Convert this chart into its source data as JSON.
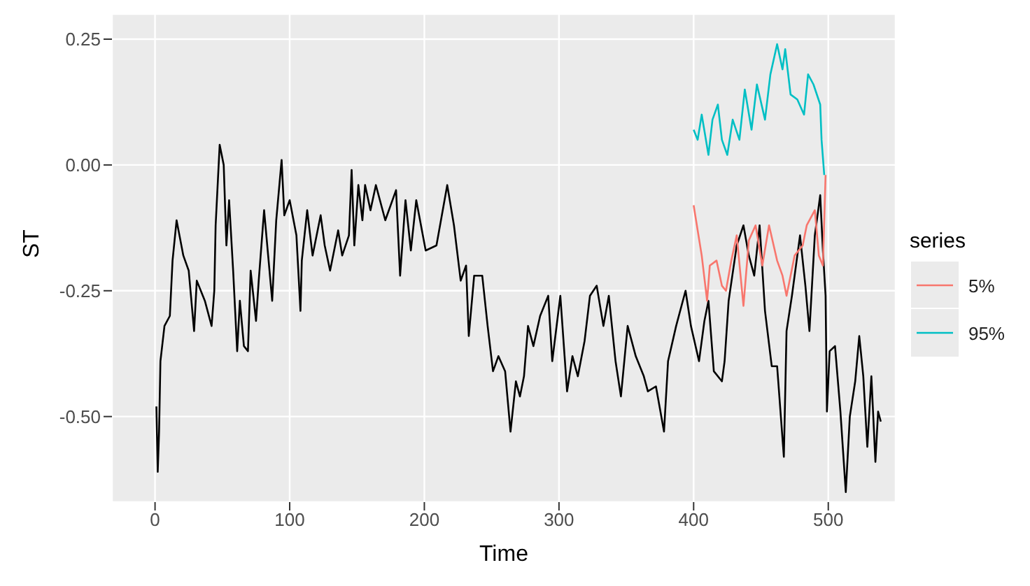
{
  "chart_data": {
    "type": "line",
    "xlabel": "Time",
    "ylabel": "ST",
    "legend_title": "series",
    "legend": "right",
    "grid": true,
    "xlim": [
      -32,
      550
    ],
    "xticks": [
      0,
      100,
      200,
      300,
      400,
      500
    ],
    "ylim": [
      -0.67,
      0.3
    ],
    "yticks": [
      0.25,
      {
        "value": 0,
        "label": "0.00"
      },
      -0.25,
      {
        "value": -0.5,
        "label": "-0.50"
      }
    ],
    "series": [
      {
        "color": "#000000",
        "x": [
          1,
          2,
          3,
          4,
          7,
          11,
          13,
          16,
          21,
          25,
          29,
          31,
          37,
          42,
          44,
          45,
          48,
          51,
          53,
          55,
          58,
          61,
          63,
          66,
          69,
          71,
          75,
          77,
          81,
          84,
          87,
          90,
          94,
          96,
          100,
          105,
          108,
          109,
          113,
          117,
          123,
          126,
          130,
          136,
          139,
          144,
          146,
          148,
          151,
          154,
          156,
          160,
          164,
          171,
          179,
          182,
          186,
          190,
          194,
          201,
          209,
          217,
          222,
          227,
          231,
          233,
          237,
          243,
          247,
          251,
          255,
          260,
          264,
          268,
          271,
          274,
          277,
          281,
          286,
          292,
          295,
          301,
          306,
          310,
          314,
          319,
          323,
          328,
          333,
          337,
          342,
          346,
          351,
          357,
          363,
          366,
          372,
          378,
          381,
          387,
          394,
          398,
          404,
          408,
          411,
          415,
          421,
          423,
          426,
          432,
          437,
          441,
          445,
          449,
          453,
          458,
          462,
          467,
          469,
          473,
          479,
          483,
          486,
          490,
          494,
          496,
          498,
          499,
          501,
          505,
          509,
          513,
          516,
          520,
          523,
          526,
          529,
          532,
          535,
          537,
          539
        ],
        "values": [
          -0.48,
          -0.61,
          -0.53,
          -0.39,
          -0.32,
          -0.3,
          -0.19,
          -0.11,
          -0.18,
          -0.21,
          -0.33,
          -0.23,
          -0.27,
          -0.32,
          -0.25,
          -0.12,
          0.04,
          0.0,
          -0.16,
          -0.07,
          -0.21,
          -0.37,
          -0.27,
          -0.36,
          -0.37,
          -0.21,
          -0.31,
          -0.23,
          -0.09,
          -0.18,
          -0.27,
          -0.11,
          0.01,
          -0.1,
          -0.07,
          -0.14,
          -0.29,
          -0.19,
          -0.09,
          -0.18,
          -0.1,
          -0.16,
          -0.21,
          -0.13,
          -0.18,
          -0.14,
          -0.01,
          -0.16,
          -0.04,
          -0.11,
          -0.04,
          -0.09,
          -0.04,
          -0.11,
          -0.05,
          -0.22,
          -0.07,
          -0.17,
          -0.07,
          -0.17,
          -0.16,
          -0.04,
          -0.12,
          -0.23,
          -0.2,
          -0.34,
          -0.22,
          -0.22,
          -0.32,
          -0.41,
          -0.38,
          -0.41,
          -0.53,
          -0.43,
          -0.46,
          -0.42,
          -0.32,
          -0.36,
          -0.3,
          -0.26,
          -0.39,
          -0.26,
          -0.45,
          -0.38,
          -0.42,
          -0.35,
          -0.26,
          -0.24,
          -0.32,
          -0.26,
          -0.39,
          -0.46,
          -0.32,
          -0.38,
          -0.42,
          -0.45,
          -0.44,
          -0.53,
          -0.39,
          -0.32,
          -0.25,
          -0.32,
          -0.39,
          -0.31,
          -0.27,
          -0.41,
          -0.43,
          -0.39,
          -0.27,
          -0.16,
          -0.12,
          -0.18,
          -0.22,
          -0.12,
          -0.29,
          -0.4,
          -0.4,
          -0.58,
          -0.33,
          -0.26,
          -0.14,
          -0.24,
          -0.33,
          -0.14,
          -0.06,
          -0.17,
          -0.26,
          -0.49,
          -0.37,
          -0.36,
          -0.49,
          -0.65,
          -0.5,
          -0.43,
          -0.34,
          -0.42,
          -0.56,
          -0.42,
          -0.59,
          -0.49,
          -0.51
        ]
      },
      {
        "name": "5%",
        "color": "#f8766d",
        "x": [
          400,
          403,
          406,
          410,
          412,
          417,
          421,
          424,
          428,
          432,
          437,
          441,
          446,
          451,
          456,
          462,
          466,
          469,
          475,
          481,
          484,
          490,
          493,
          496,
          498
        ],
        "values": [
          -0.08,
          -0.13,
          -0.18,
          -0.27,
          -0.2,
          -0.19,
          -0.24,
          -0.25,
          -0.19,
          -0.14,
          -0.28,
          -0.15,
          -0.12,
          -0.2,
          -0.12,
          -0.19,
          -0.22,
          -0.26,
          -0.18,
          -0.16,
          -0.12,
          -0.09,
          -0.18,
          -0.2,
          -0.02
        ]
      },
      {
        "name": "95%",
        "color": "#00bfc4",
        "x": [
          400,
          403,
          406,
          411,
          414,
          418,
          421,
          425,
          429,
          434,
          438,
          443,
          447,
          453,
          457,
          462,
          466,
          468,
          472,
          477,
          482,
          485,
          489,
          494,
          495,
          497
        ],
        "values": [
          0.07,
          0.05,
          0.1,
          0.02,
          0.09,
          0.12,
          0.05,
          0.02,
          0.09,
          0.05,
          0.15,
          0.07,
          0.16,
          0.09,
          0.18,
          0.24,
          0.19,
          0.23,
          0.14,
          0.13,
          0.1,
          0.18,
          0.16,
          0.12,
          0.05,
          -0.02
        ]
      }
    ]
  }
}
